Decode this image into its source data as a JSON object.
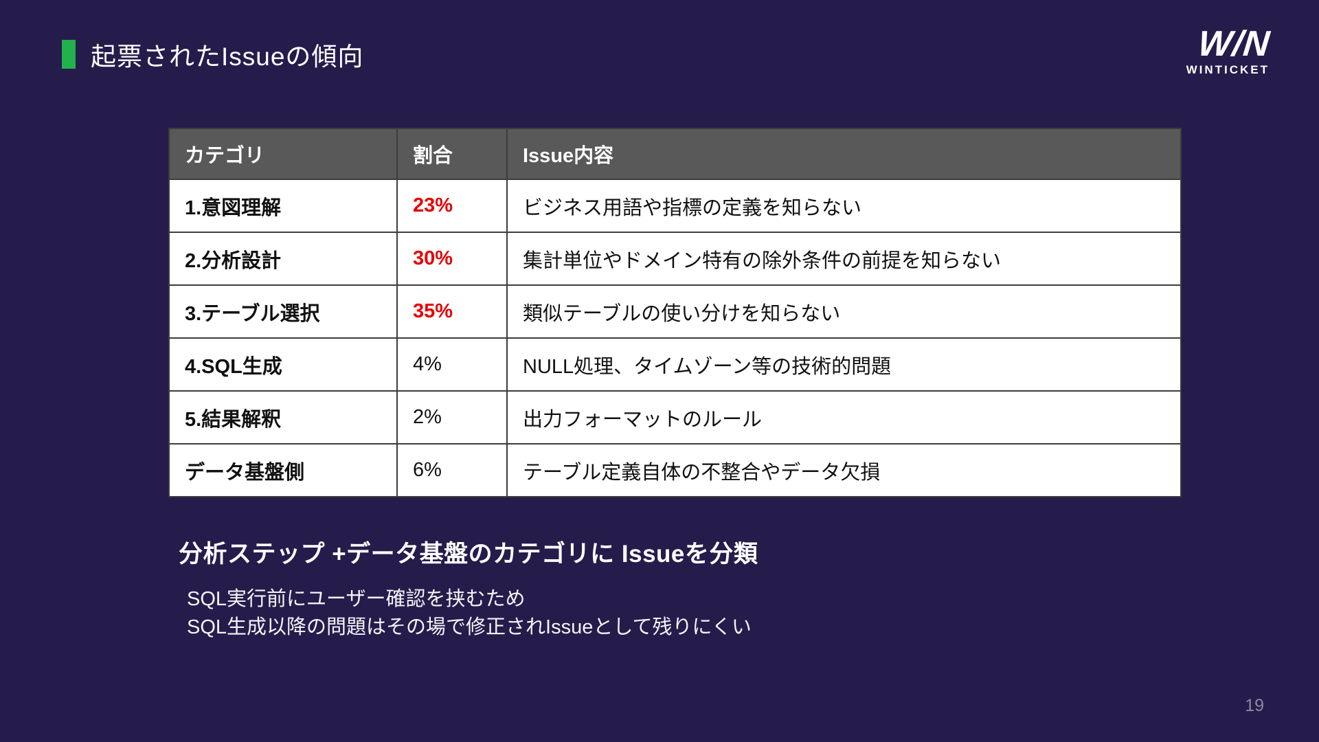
{
  "slide": {
    "title": "起票されたIssueの傾向",
    "page_number": "19",
    "logo": {
      "wordmark": "W/N",
      "name": "WINTICKET"
    },
    "colors": {
      "background": "#261c4b",
      "accent_green": "#22b14c",
      "highlight_red": "#e60000",
      "table_header_gray": "#595959"
    }
  },
  "table": {
    "headers": [
      "カテゴリ",
      "割合",
      "Issue内容"
    ],
    "rows": [
      {
        "category": "1.意図理解",
        "percent": "23%",
        "content": "ビジネス用語や指標の定義を知らない",
        "highlight": true
      },
      {
        "category": "2.分析設計",
        "percent": "30%",
        "content": "集計単位やドメイン特有の除外条件の前提を知らない",
        "highlight": true
      },
      {
        "category": "3.テーブル選択",
        "percent": "35%",
        "content": "類似テーブルの使い分けを知らない",
        "highlight": true
      },
      {
        "category": "4.SQL生成",
        "percent": "4%",
        "content": "NULL処理、タイムゾーン等の技術的問題",
        "highlight": false
      },
      {
        "category": "5.結果解釈",
        "percent": "2%",
        "content": "出力フォーマットのルール",
        "highlight": false
      },
      {
        "category": "データ基盤側",
        "percent": "6%",
        "content": "テーブル定義自体の不整合やデータ欠損",
        "highlight": false
      }
    ]
  },
  "summary": {
    "heading": "分析ステップ +データ基盤のカテゴリに Issueを分類",
    "notes": [
      "SQL実行前にユーザー確認を挟むため",
      "SQL生成以降の問題はその場で修正されIssueとして残りにくい"
    ]
  }
}
